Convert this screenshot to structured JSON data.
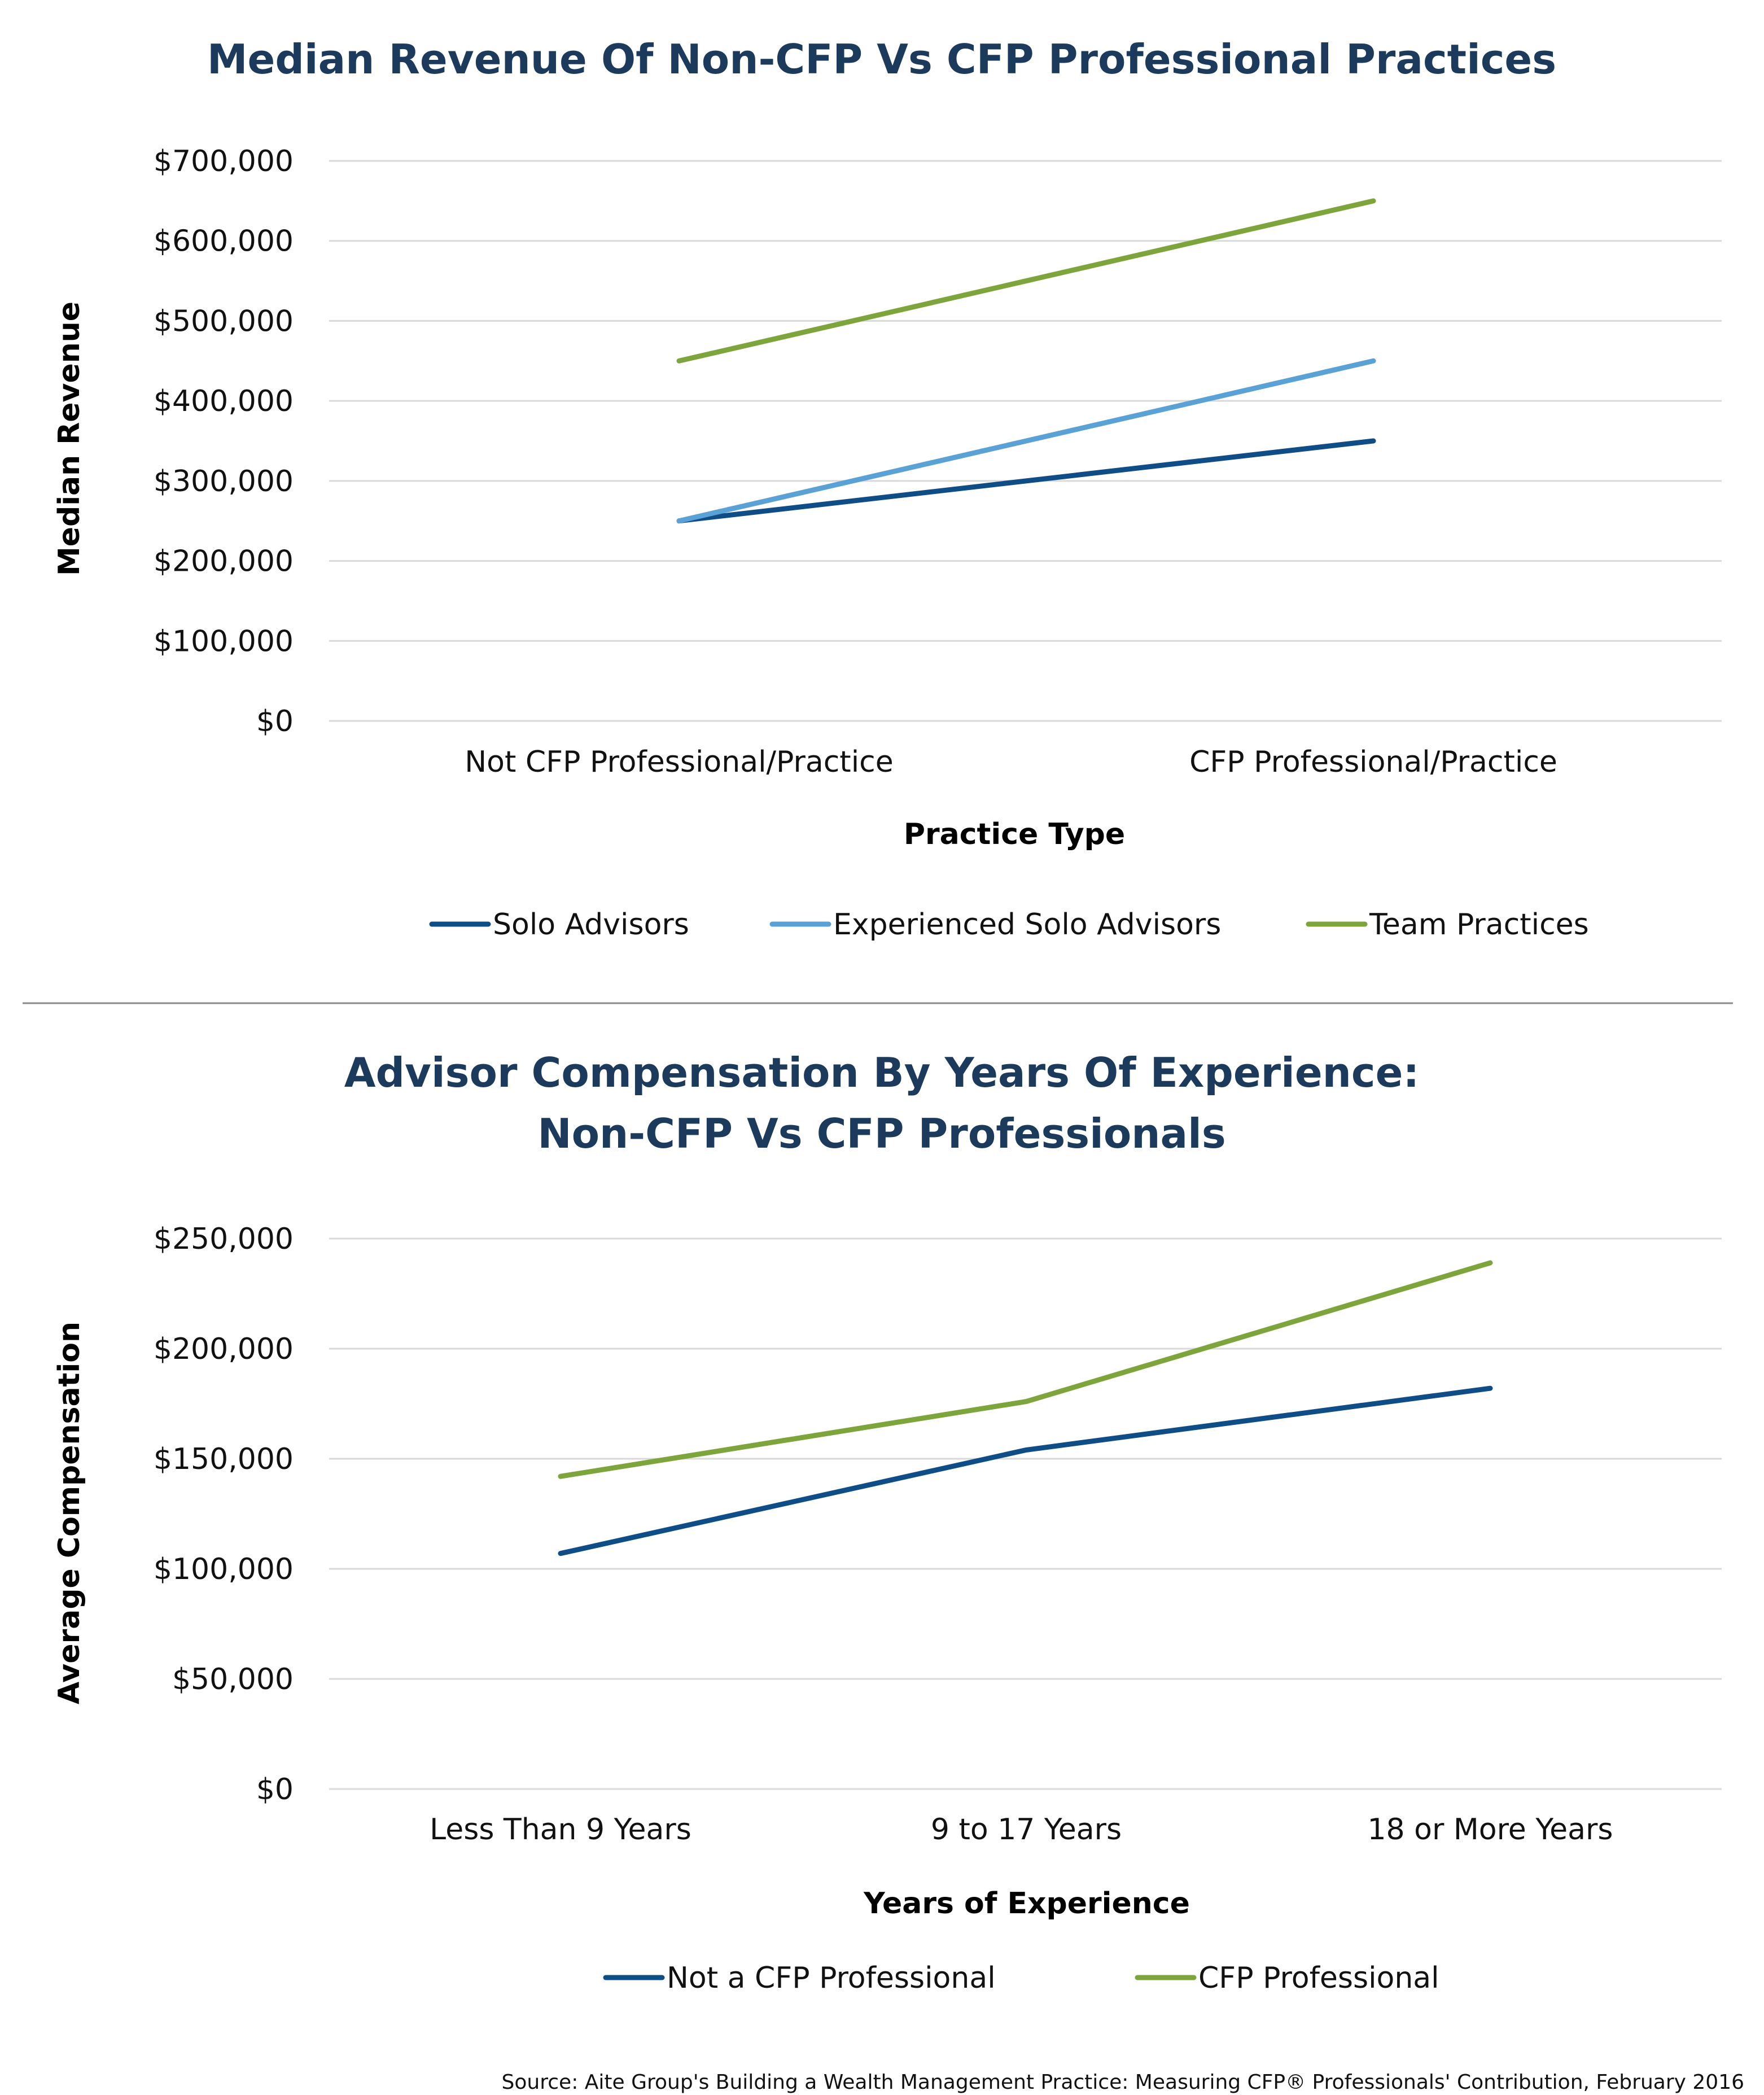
{
  "source": "Source: Aite Group's Building a Wealth Management Practice: Measuring CFP® Professionals' Contribution, February 2016",
  "chart_data": [
    {
      "type": "line",
      "title": "Median Revenue Of Non-CFP Vs CFP Professional Practices",
      "xlabel": "Practice Type",
      "ylabel": "Median Revenue",
      "categories": [
        "Not CFP Professional/Practice",
        "CFP Professional/Practice"
      ],
      "ylim": [
        0,
        700000
      ],
      "yticks": [
        0,
        100000,
        200000,
        300000,
        400000,
        500000,
        600000,
        700000
      ],
      "ytick_labels": [
        "$0",
        "$100,000",
        "$200,000",
        "$300,000",
        "$400,000",
        "$500,000",
        "$600,000",
        "$700,000"
      ],
      "grid": true,
      "legend_position": "bottom",
      "series": [
        {
          "name": "Solo Advisors",
          "color": "#0f4d87",
          "values": [
            250000,
            350000
          ]
        },
        {
          "name": "Experienced Solo Advisors",
          "color": "#5aa2d6",
          "values": [
            250000,
            450000
          ]
        },
        {
          "name": "Team Practices",
          "color": "#7ea43c",
          "values": [
            450000,
            650000
          ]
        }
      ]
    },
    {
      "type": "line",
      "title": "Advisor Compensation By Years Of Experience:",
      "subtitle": "Non-CFP Vs CFP Professionals",
      "xlabel": "Years of Experience",
      "ylabel": "Average Compensation",
      "categories": [
        "Less Than 9 Years",
        "9 to 17 Years",
        "18 or More Years"
      ],
      "ylim": [
        0,
        250000
      ],
      "yticks": [
        0,
        50000,
        100000,
        150000,
        200000,
        250000
      ],
      "ytick_labels": [
        "$0",
        "$50,000",
        "$100,000",
        "$150,000",
        "$200,000",
        "$250,000"
      ],
      "grid": true,
      "legend_position": "bottom",
      "series": [
        {
          "name": "Not a CFP Professional",
          "color": "#0f4d87",
          "values": [
            107000,
            154000,
            182000
          ]
        },
        {
          "name": "CFP Professional",
          "color": "#7ea43c",
          "values": [
            142000,
            176000,
            239000
          ]
        }
      ]
    }
  ]
}
